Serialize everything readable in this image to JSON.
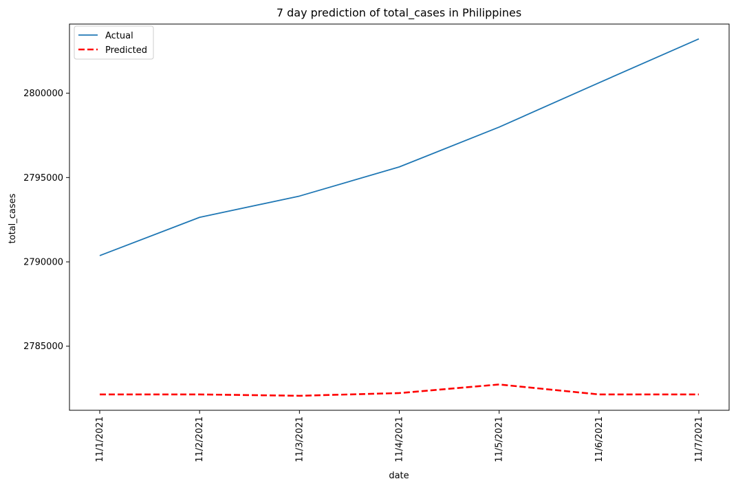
{
  "chart_data": {
    "type": "line",
    "title": "7 day prediction of total_cases in Philippines",
    "xlabel": "date",
    "ylabel": "total_cases",
    "categories": [
      "11/1/2021",
      "11/2/2021",
      "11/3/2021",
      "11/4/2021",
      "11/5/2021",
      "11/6/2021",
      "11/7/2021"
    ],
    "y_ticks": [
      2785000,
      2790000,
      2795000,
      2800000
    ],
    "ylim": [
      2781200,
      2804100
    ],
    "grid": false,
    "legend_position": "top-left",
    "series": [
      {
        "name": "Actual",
        "color": "#1f77b4",
        "style": "solid",
        "values": [
          2790370,
          2792640,
          2793900,
          2795630,
          2797990,
          2800620,
          2803220
        ]
      },
      {
        "name": "Predicted",
        "color": "#ff0000",
        "style": "dashed",
        "values": [
          2782140,
          2782140,
          2782060,
          2782220,
          2782730,
          2782140,
          2782140
        ]
      }
    ]
  }
}
